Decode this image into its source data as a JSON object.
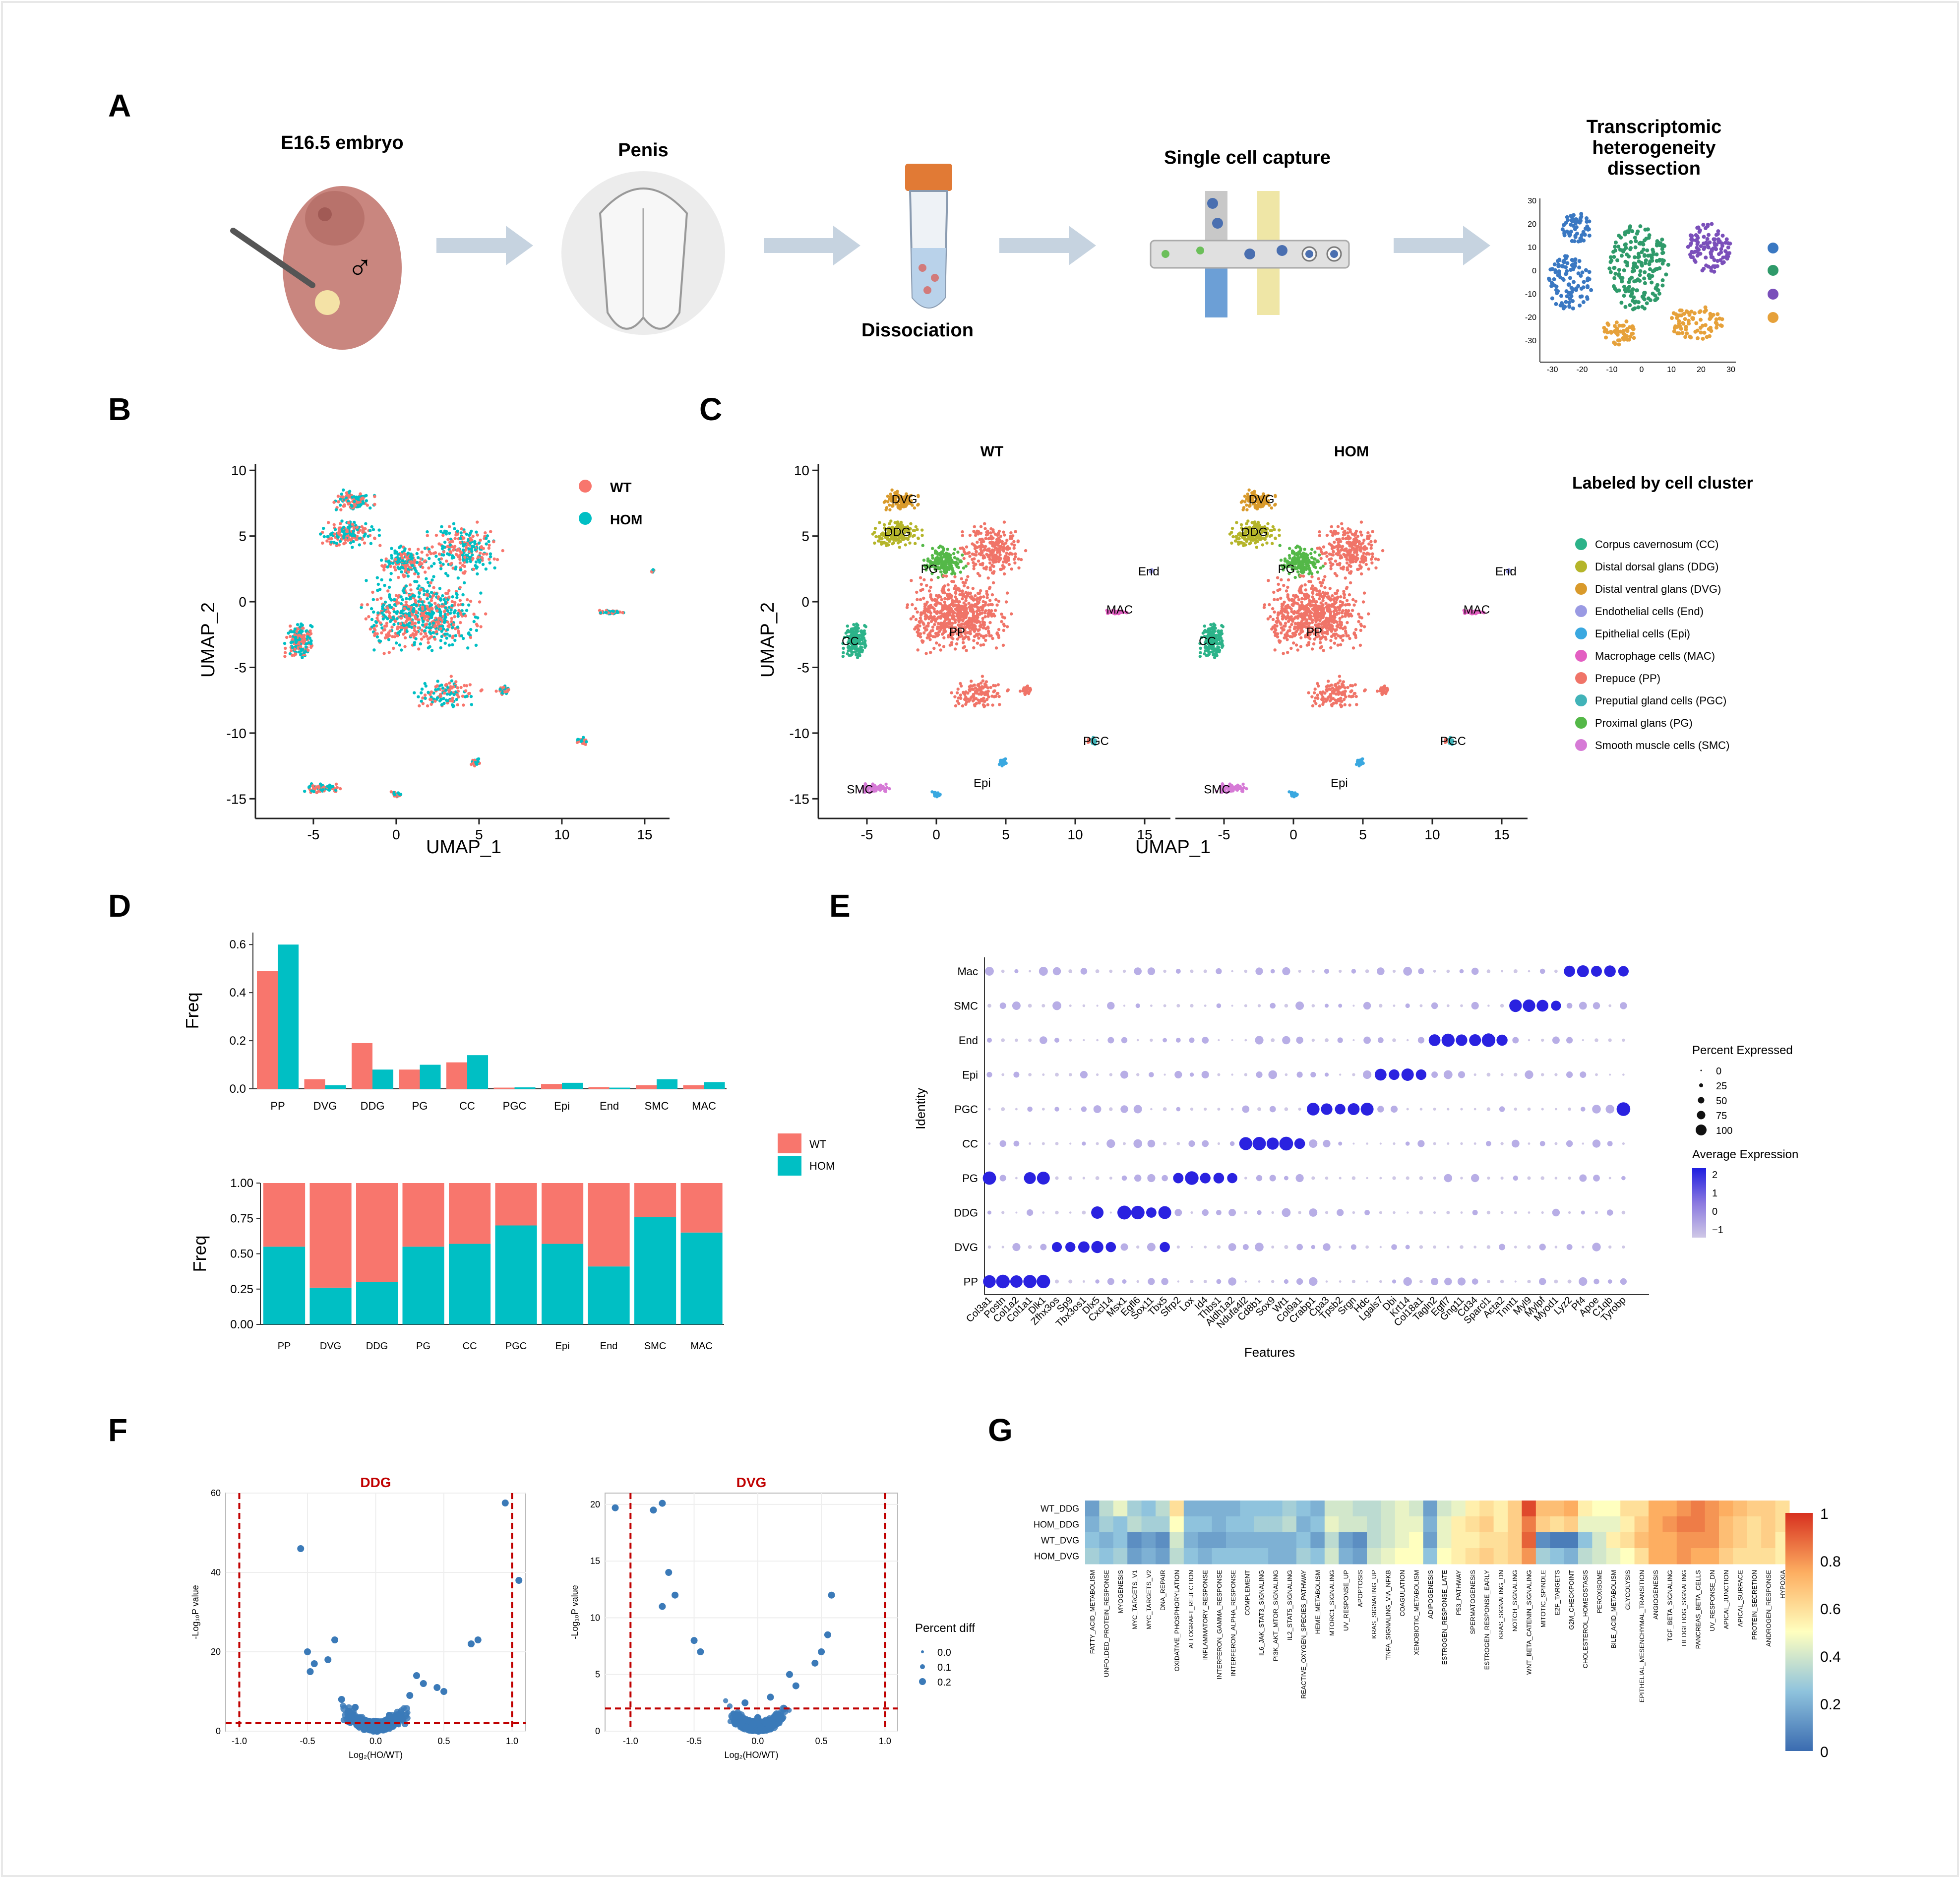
{
  "panels": {
    "A": "A",
    "B": "B",
    "C": "C",
    "D": "D",
    "E": "E",
    "F": "F",
    "G": "G"
  },
  "panel_a": {
    "steps": [
      "E16.5 embryo",
      "Penis",
      "Dissociation",
      "Single cell capture"
    ],
    "last_step": [
      "Transcriptomic",
      "heterogeneity",
      "dissection"
    ],
    "male_symbol": "♂",
    "mini_x_ticks": [
      "-30",
      "-20",
      "-10",
      "0",
      "10",
      "20",
      "30"
    ],
    "mini_y_ticks": [
      "30",
      "20",
      "10",
      "0",
      "-10",
      "-20",
      "-30"
    ]
  },
  "colors": {
    "wt": "#f8766d",
    "hom": "#00bfc4",
    "cc": "#2cb389",
    "ddg": "#b5b52a",
    "dvg": "#d99a2b",
    "end": "#9a9ae3",
    "epi": "#3aa8e0",
    "mac": "#e35fc2",
    "pp": "#f07468",
    "pgc": "#41b3b8",
    "pg": "#54b848",
    "smc": "#d67ad6",
    "dot_high": "#1f1ee0",
    "dot_low": "#cfc8e6",
    "volcano": "#3b7ab8",
    "dash": "#c00000"
  },
  "panel_b": {
    "legend": [
      "WT",
      "HOM"
    ],
    "x_label": "UMAP_1",
    "y_label": "UMAP_2",
    "x_ticks": [
      "-5",
      "0",
      "5",
      "10",
      "15"
    ],
    "y_ticks": [
      "10",
      "5",
      "0",
      "-5",
      "-10",
      "-15"
    ]
  },
  "panel_c": {
    "titles": [
      "WT",
      "HOM"
    ],
    "legend_title": "Labeled by cell cluster",
    "legend_items": [
      "Corpus cavernosum (CC)",
      "Distal dorsal glans (DDG)",
      "Distal ventral glans (DVG)",
      "Endothelial cells (End)",
      "Epithelial cells (Epi)",
      "Macrophage cells (MAC)",
      "Prepuce (PP)",
      "Preputial gland cells (PGC)",
      "Proximal glans (PG)",
      "Smooth muscle cells (SMC)"
    ],
    "cluster_labels": [
      "DVG",
      "DDG",
      "PG",
      "PP",
      "CC",
      "End",
      "MAC",
      "PGC",
      "Epi",
      "SMC"
    ],
    "x_label": "UMAP_1",
    "y_label": "UMAP_2",
    "x_ticks": [
      "-5",
      "0",
      "5",
      "10",
      "15"
    ],
    "y_ticks": [
      "10",
      "5",
      "0",
      "-5",
      "-10",
      "-15"
    ]
  },
  "panel_f_text": {
    "x_label": "Log₂(HO/WT)",
    "y_label": "-Log₁₀P value",
    "legend_title": "Percent diff",
    "legend_items": [
      "0.0",
      "0.1",
      "0.2"
    ]
  },
  "panel_e_text": {
    "x_label": "Features",
    "y_label": "Identity",
    "legend_pct_title": "Percent Expressed",
    "legend_pct_items": [
      "0",
      "25",
      "50",
      "75",
      "100"
    ],
    "legend_avg_title": "Average Expression",
    "legend_avg_items": [
      "2",
      "1",
      "0",
      "−1"
    ]
  },
  "chart_data": [
    {
      "id": "D_top",
      "type": "bar",
      "title": "",
      "xlabel": "",
      "ylabel": "Freq",
      "categories": [
        "PP",
        "DVG",
        "DDG",
        "PG",
        "CC",
        "PGC",
        "Epi",
        "End",
        "SMC",
        "MAC"
      ],
      "series": [
        {
          "name": "WT",
          "values": [
            0.49,
            0.04,
            0.19,
            0.08,
            0.11,
            0.005,
            0.02,
            0.007,
            0.015,
            0.015
          ]
        },
        {
          "name": "HOM",
          "values": [
            0.6,
            0.015,
            0.08,
            0.1,
            0.14,
            0.006,
            0.025,
            0.005,
            0.04,
            0.028
          ]
        }
      ],
      "ylim": [
        0,
        0.65
      ],
      "y_ticks": [
        "0.0",
        "0.2",
        "0.4",
        "0.6"
      ],
      "legend": [
        "WT",
        "HOM"
      ]
    },
    {
      "id": "D_bottom",
      "type": "bar",
      "stacked": true,
      "title": "",
      "xlabel": "",
      "ylabel": "Freq",
      "categories": [
        "PP",
        "DVG",
        "DDG",
        "PG",
        "CC",
        "PGC",
        "Epi",
        "End",
        "SMC",
        "MAC"
      ],
      "series": [
        {
          "name": "HOM",
          "values": [
            0.55,
            0.26,
            0.3,
            0.55,
            0.57,
            0.7,
            0.57,
            0.41,
            0.76,
            0.65
          ]
        },
        {
          "name": "WT",
          "values": [
            0.45,
            0.74,
            0.7,
            0.45,
            0.43,
            0.3,
            0.43,
            0.59,
            0.24,
            0.35
          ]
        }
      ],
      "ylim": [
        0,
        1
      ],
      "y_ticks": [
        "0.00",
        "0.25",
        "0.50",
        "0.75",
        "1.00"
      ]
    },
    {
      "id": "E",
      "type": "scatter",
      "subtype": "dotplot",
      "xlabel": "Features",
      "ylabel": "Identity",
      "rows": [
        "Mac",
        "SMC",
        "End",
        "Epi",
        "PGC",
        "CC",
        "PG",
        "DDG",
        "DVG",
        "PP"
      ],
      "features": [
        "Col3a1",
        "Postn",
        "Col1a2",
        "Col1a1",
        "Dlk1",
        "Zfhx3os",
        "Sp9",
        "Tbx3os1",
        "Dlx5",
        "Cxcl14",
        "Msx1",
        "Egfl6",
        "Sox11",
        "Tbx5",
        "Sfrp2",
        "Lox",
        "Id4",
        "Thbs1",
        "Aldh1a2",
        "Ndufa4l2",
        "Cd8b1",
        "Sox9",
        "Wt1",
        "Col9a1",
        "Crabp1",
        "Cpa3",
        "Tpsb2",
        "Srgn",
        "Hdc",
        "Lgals7",
        "Dbi",
        "Krt14",
        "Col18a1",
        "Tagln2",
        "Egfl7",
        "Gng11",
        "Cd34",
        "Sparcl1",
        "Acta2",
        "Tnnt1",
        "Myl9",
        "Mylpf",
        "Myod1",
        "Lyz2",
        "Pf4",
        "Apoe",
        "C1qb",
        "Tyrobp"
      ],
      "size_legend": [
        0,
        25,
        50,
        75,
        100
      ],
      "color_range": [
        -1,
        2
      ],
      "highlights": [
        {
          "row": "PP",
          "features": [
            "Col3a1",
            "Postn",
            "Col1a2",
            "Col1a1",
            "Dlk1"
          ]
        },
        {
          "row": "DVG",
          "features": [
            "Zfhx3os",
            "Sp9",
            "Tbx3os1",
            "Dlx5",
            "Cxcl14",
            "Tbx5"
          ]
        },
        {
          "row": "DDG",
          "features": [
            "Dlx5",
            "Msx1",
            "Egfl6",
            "Sox11",
            "Tbx5"
          ]
        },
        {
          "row": "PG",
          "features": [
            "Col3a1",
            "Col1a1",
            "Dlk1",
            "Sfrp2",
            "Lox",
            "Id4",
            "Thbs1",
            "Aldh1a2"
          ]
        },
        {
          "row": "CC",
          "features": [
            "Ndufa4l2",
            "Cd8b1",
            "Sox9",
            "Wt1",
            "Col9a1"
          ]
        },
        {
          "row": "PGC",
          "features": [
            "Crabp1",
            "Cpa3",
            "Tpsb2",
            "Srgn",
            "Hdc",
            "Tyrobp"
          ]
        },
        {
          "row": "Epi",
          "features": [
            "Lgals7",
            "Dbi",
            "Krt14",
            "Col18a1"
          ]
        },
        {
          "row": "End",
          "features": [
            "Tagln2",
            "Egfl7",
            "Gng11",
            "Cd34",
            "Sparcl1",
            "Acta2"
          ]
        },
        {
          "row": "SMC",
          "features": [
            "Tnnt1",
            "Myl9",
            "Mylpf",
            "Myod1"
          ]
        },
        {
          "row": "Mac",
          "features": [
            "Lyz2",
            "Pf4",
            "Apoe",
            "C1qb",
            "Tyrobp"
          ]
        }
      ]
    },
    {
      "id": "F_DDG",
      "type": "scatter",
      "title": "DDG",
      "xlabel": "Log2(HO/WT)",
      "ylabel": "-Log10(P value)",
      "xlim": [
        -1.1,
        1.1
      ],
      "ylim": [
        0,
        60
      ],
      "x_ticks": [
        "-1.0",
        "-0.5",
        "0.0",
        "0.5",
        "1.0"
      ],
      "y_ticks": [
        "0",
        "20",
        "40",
        "60"
      ],
      "thresholds": {
        "x": [
          -1,
          1
        ],
        "y": 2
      },
      "points": [
        [
          0.95,
          57.5
        ],
        [
          1.05,
          38
        ],
        [
          -0.55,
          46
        ],
        [
          0.7,
          22
        ],
        [
          0.75,
          23
        ],
        [
          -0.5,
          20
        ],
        [
          -0.45,
          17
        ],
        [
          -0.48,
          15
        ],
        [
          -0.3,
          23
        ],
        [
          0.3,
          14
        ],
        [
          0.35,
          12
        ],
        [
          0.5,
          10
        ],
        [
          -0.35,
          18
        ],
        [
          0.1,
          4
        ],
        [
          0.0,
          2
        ],
        [
          0.2,
          3
        ],
        [
          -0.2,
          5
        ],
        [
          -0.25,
          8
        ],
        [
          -0.15,
          6
        ],
        [
          0.25,
          9
        ],
        [
          0.45,
          11
        ]
      ]
    },
    {
      "id": "F_DVG",
      "type": "scatter",
      "title": "DVG",
      "xlabel": "Log2(HO/WT)",
      "ylabel": "-Log10(P value)",
      "xlim": [
        -1.2,
        1.1
      ],
      "ylim": [
        0,
        21
      ],
      "x_ticks": [
        "-1.0",
        "-0.5",
        "0.0",
        "0.5",
        "1.0"
      ],
      "y_ticks": [
        "0",
        "5",
        "10",
        "15",
        "20"
      ],
      "thresholds": {
        "x": [
          -1,
          1
        ],
        "y": 2
      },
      "points": [
        [
          -1.12,
          19.7
        ],
        [
          -0.75,
          20.1
        ],
        [
          -0.82,
          19.5
        ],
        [
          -0.7,
          14
        ],
        [
          -0.65,
          12
        ],
        [
          -0.75,
          11
        ],
        [
          0.58,
          12
        ],
        [
          0.55,
          8.5
        ],
        [
          0.5,
          7
        ],
        [
          0.45,
          6
        ],
        [
          -0.5,
          8
        ],
        [
          -0.45,
          7
        ],
        [
          0.25,
          5
        ],
        [
          0.3,
          4
        ],
        [
          0.1,
          3
        ],
        [
          -0.1,
          2.5
        ],
        [
          0.0,
          1.2
        ]
      ]
    },
    {
      "id": "G",
      "type": "heatmap",
      "title": "",
      "rows": [
        "WT_DDG",
        "HOM_DDG",
        "WT_DVG",
        "HOM_DVG"
      ],
      "columns": [
        "FATTY_ACID_METABOLISM",
        "UNFOLDED_PROTEIN_RESPONSE",
        "MYOGENESIS",
        "MYC_TARGETS_V1",
        "MYC_TARGETS_V2",
        "DNA_REPAIR",
        "OXIDATIVE_PHOSPHORYLATION",
        "ALLOGRAFT_REJECTION",
        "INFLAMMATORY_RESPONSE",
        "INTERFERON_GAMMA_RESPONSE",
        "INTERFERON_ALPHA_RESPONSE",
        "COMPLEMENT",
        "IL6_JAK_STAT3_SIGNALING",
        "PI3K_AKT_MTOR_SIGNALING",
        "IL2_STAT5_SIGNALING",
        "REACTIVE_OXYGEN_SPECIES_PATHWAY",
        "HEME_METABOLISM",
        "MTORC1_SIGNALING",
        "UV_RESPONSE_UP",
        "APOPTOSIS",
        "KRAS_SIGNALING_UP",
        "TNFA_SIGNALING_VIA_NFKB",
        "COAGULATION",
        "XENOBIOTIC_METABOLISM",
        "ADIPOGENESIS",
        "ESTROGEN_RESPONSE_LATE",
        "P53_PATHWAY",
        "SPERMATOGENESIS",
        "ESTROGEN_RESPONSE_EARLY",
        "KRAS_SIGNALING_DN",
        "NOTCH_SIGNALING",
        "WNT_BETA_CATENIN_SIGNALING",
        "MITOTIC_SPINDLE",
        "E2F_TARGETS",
        "G2M_CHECKPOINT",
        "CHOLESTEROL_HOMEOSTASIS",
        "PEROXISOME",
        "BILE_ACID_METABOLISM",
        "GLYCOLYSIS",
        "EPITHELIAL_MESENCHYMAL_TRANSITION",
        "ANGIOGENESIS",
        "TGF_BETA_SIGNALING",
        "HEDGEHOG_SIGNALING",
        "PANCREAS_BETA_CELLS",
        "UV_RESPONSE_DN",
        "APICAL_JUNCTION",
        "APICAL_SURFACE",
        "PROTEIN_SECRETION",
        "ANDROGEN_RESPONSE",
        "HYPOXIA"
      ],
      "values": [
        [
          0.15,
          0.35,
          0.45,
          0.3,
          0.25,
          0.35,
          0.6,
          0.2,
          0.2,
          0.2,
          0.2,
          0.25,
          0.25,
          0.25,
          0.3,
          0.25,
          0.2,
          0.4,
          0.4,
          0.35,
          0.35,
          0.4,
          0.45,
          0.4,
          0.15,
          0.4,
          0.45,
          0.55,
          0.6,
          0.55,
          0.65,
          0.95,
          0.7,
          0.7,
          0.75,
          0.55,
          0.5,
          0.5,
          0.6,
          0.6,
          0.75,
          0.75,
          0.8,
          0.85,
          0.8,
          0.75,
          0.7,
          0.65,
          0.65,
          0.6
        ],
        [
          0.2,
          0.3,
          0.25,
          0.35,
          0.3,
          0.3,
          0.5,
          0.25,
          0.25,
          0.2,
          0.25,
          0.25,
          0.3,
          0.3,
          0.35,
          0.2,
          0.25,
          0.45,
          0.4,
          0.4,
          0.35,
          0.4,
          0.45,
          0.45,
          0.2,
          0.45,
          0.55,
          0.6,
          0.65,
          0.55,
          0.65,
          0.85,
          0.65,
          0.6,
          0.65,
          0.45,
          0.45,
          0.45,
          0.55,
          0.65,
          0.75,
          0.8,
          0.85,
          0.85,
          0.8,
          0.7,
          0.65,
          0.6,
          0.65,
          0.6
        ],
        [
          0.25,
          0.2,
          0.25,
          0.1,
          0.15,
          0.1,
          0.4,
          0.2,
          0.15,
          0.15,
          0.2,
          0.2,
          0.2,
          0.2,
          0.2,
          0.25,
          0.15,
          0.35,
          0.15,
          0.1,
          0.35,
          0.4,
          0.45,
          0.5,
          0.15,
          0.45,
          0.55,
          0.55,
          0.6,
          0.6,
          0.65,
          0.9,
          0.1,
          0.05,
          0.05,
          0.25,
          0.4,
          0.55,
          0.6,
          0.7,
          0.75,
          0.75,
          0.8,
          0.8,
          0.8,
          0.7,
          0.65,
          0.6,
          0.65,
          0.55
        ],
        [
          0.3,
          0.25,
          0.3,
          0.15,
          0.2,
          0.15,
          0.35,
          0.25,
          0.2,
          0.25,
          0.25,
          0.25,
          0.25,
          0.2,
          0.2,
          0.3,
          0.25,
          0.4,
          0.2,
          0.15,
          0.4,
          0.45,
          0.5,
          0.5,
          0.25,
          0.5,
          0.55,
          0.6,
          0.65,
          0.6,
          0.65,
          0.8,
          0.3,
          0.25,
          0.2,
          0.35,
          0.4,
          0.45,
          0.5,
          0.6,
          0.75,
          0.75,
          0.8,
          0.75,
          0.75,
          0.65,
          0.6,
          0.6,
          0.6,
          0.55
        ]
      ],
      "color_scale": [
        "#3a6bb0",
        "#ffffbf",
        "#d7301f"
      ],
      "legend_ticks": [
        "1",
        "0.8",
        "0.6",
        "0.4",
        "0.2",
        "0"
      ]
    }
  ]
}
